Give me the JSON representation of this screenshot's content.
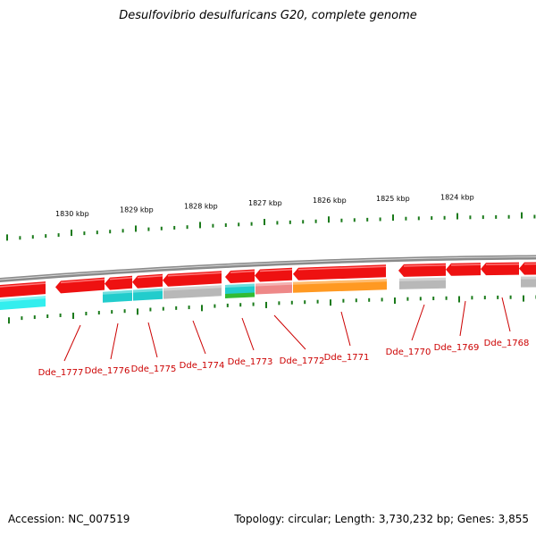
{
  "title": "Desulfovibrio desulfuricans G20, complete genome",
  "footer": {
    "accession": "Accession: NC_007519",
    "summary": "Topology: circular; Length: 3,730,232 bp; Genes: 3,855"
  },
  "colors": {
    "backbone": "#8a8a8a",
    "tick": "#1a7a1a",
    "gene": "#ee1111",
    "label": "#cc0000",
    "cyan": "#22cccc",
    "lightcyan": "#33eeee",
    "gray": "#b8b8b8",
    "pink": "#ee8888",
    "orange": "#ff9922",
    "green": "#33bb33"
  },
  "coordinate_labels": [
    "1830 kbp",
    "1829 kbp",
    "1828 kbp",
    "1827 kbp",
    "1826 kbp",
    "1825 kbp",
    "1824 kbp"
  ],
  "gene_labels": [
    "Dde_1777",
    "Dde_1776",
    "Dde_1775",
    "Dde_1774",
    "Dde_1773",
    "Dde_1772",
    "Dde_1771",
    "Dde_1770",
    "Dde_1769",
    "Dde_1768"
  ]
}
